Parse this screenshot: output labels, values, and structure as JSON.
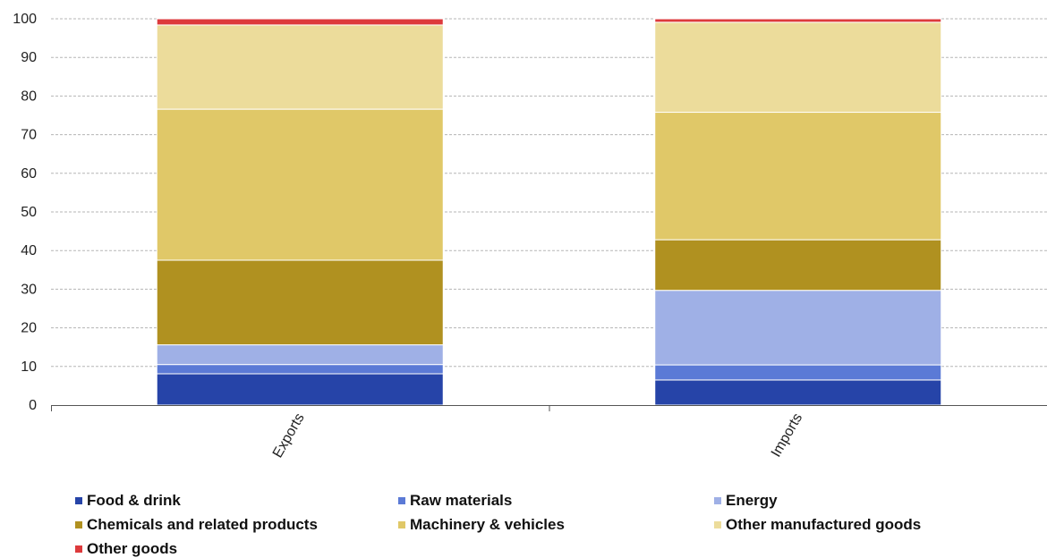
{
  "chart_data": {
    "type": "bar",
    "stacked": true,
    "categories": [
      "Exports",
      "Imports"
    ],
    "series": [
      {
        "name": "Food & drink",
        "color": "#2644a8",
        "values": [
          8.1,
          6.5
        ]
      },
      {
        "name": "Raw materials",
        "color": "#5b7ad6",
        "values": [
          2.4,
          3.9
        ]
      },
      {
        "name": "Energy",
        "color": "#9fb0e6",
        "values": [
          5.1,
          19.3
        ]
      },
      {
        "name": "Chemicals and related products",
        "color": "#b09120",
        "values": [
          21.9,
          13.1
        ]
      },
      {
        "name": "Machinery & vehicles",
        "color": "#e0c868",
        "values": [
          39.1,
          33.0
        ]
      },
      {
        "name": "Other manufactured goods",
        "color": "#ecdc9b",
        "values": [
          21.8,
          23.3
        ]
      },
      {
        "name": "Other goods",
        "color": "#dd3a3c",
        "values": [
          1.6,
          0.9
        ]
      }
    ],
    "yticks": [
      "0",
      "10",
      "20",
      "30",
      "40",
      "50",
      "60",
      "70",
      "80",
      "90",
      "100"
    ],
    "ylim": [
      0,
      100
    ],
    "grid": true,
    "legend_position": "bottom",
    "title": "",
    "xlabel": "",
    "ylabel": ""
  }
}
